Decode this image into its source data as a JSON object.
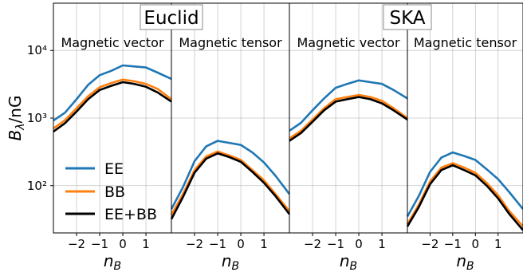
{
  "surveys": [
    {
      "name": "Euclid",
      "panels": [
        0,
        1
      ]
    },
    {
      "name": "SKA",
      "panels": [
        2,
        3
      ]
    }
  ],
  "legend": {
    "entries": [
      {
        "label": "EE",
        "color": "#1f77b4"
      },
      {
        "label": "BB",
        "color": "#ff7f0e"
      },
      {
        "label": "EE+BB",
        "color": "#000000"
      }
    ]
  },
  "chart_data": [
    {
      "type": "line",
      "title": "Magnetic vector",
      "xlabel": "n_B",
      "ylabel": "B_λ/nG",
      "yscale": "log",
      "ylim": [
        20,
        50000
      ],
      "xlim": [
        -3,
        2.1
      ],
      "xticks": [
        -2,
        -1,
        0,
        1
      ],
      "yticks": [
        100,
        1000,
        10000
      ],
      "grid": true,
      "legend_position": "lower-left",
      "series": [
        {
          "name": "EE",
          "color": "#1f77b4",
          "x": [
            -3,
            -2.5,
            -2,
            -1.5,
            -1,
            -0.5,
            0,
            0.5,
            1,
            1.5,
            2.1
          ],
          "y": [
            920,
            1200,
            1900,
            3100,
            4300,
            5000,
            6000,
            5800,
            5600,
            4700,
            3800
          ]
        },
        {
          "name": "BB",
          "color": "#ff7f0e",
          "x": [
            -3,
            -2.5,
            -2,
            -1.5,
            -1,
            -0.5,
            0,
            0.5,
            1,
            1.5,
            2.1
          ],
          "y": [
            700,
            930,
            1400,
            2100,
            2850,
            3300,
            3700,
            3500,
            3200,
            2700,
            1900
          ]
        },
        {
          "name": "EE+BB",
          "color": "#000000",
          "x": [
            -3,
            -2.5,
            -2,
            -1.5,
            -1,
            -0.5,
            0,
            0.5,
            1,
            1.5,
            2.1
          ],
          "y": [
            630,
            840,
            1250,
            1900,
            2600,
            3000,
            3400,
            3200,
            2900,
            2400,
            1750
          ]
        }
      ]
    },
    {
      "type": "line",
      "title": "Magnetic tensor",
      "xlabel": "n_B",
      "yscale": "log",
      "ylim": [
        20,
        50000
      ],
      "xlim": [
        -3,
        2.1
      ],
      "xticks": [
        -2,
        -1,
        0,
        1
      ],
      "grid": true,
      "series": [
        {
          "name": "EE",
          "color": "#1f77b4",
          "x": [
            -3,
            -2.5,
            -2,
            -1.5,
            -1,
            -0.5,
            0,
            0.5,
            1,
            1.5,
            2.1
          ],
          "y": [
            45,
            95,
            230,
            380,
            460,
            430,
            400,
            310,
            220,
            140,
            75
          ]
        },
        {
          "name": "BB",
          "color": "#ff7f0e",
          "x": [
            -3,
            -2.5,
            -2,
            -1.5,
            -1,
            -0.5,
            0,
            0.5,
            1,
            1.5,
            2.1
          ],
          "y": [
            37,
            75,
            170,
            270,
            320,
            280,
            240,
            170,
            120,
            75,
            42
          ]
        },
        {
          "name": "EE+BB",
          "color": "#000000",
          "x": [
            -3,
            -2.5,
            -2,
            -1.5,
            -1,
            -0.5,
            0,
            0.5,
            1,
            1.5,
            2.1
          ],
          "y": [
            32,
            68,
            155,
            250,
            300,
            265,
            225,
            160,
            110,
            70,
            38
          ]
        }
      ]
    },
    {
      "type": "line",
      "title": "Magnetic vector",
      "xlabel": "n_B",
      "yscale": "log",
      "ylim": [
        20,
        50000
      ],
      "xlim": [
        -3,
        2.1
      ],
      "xticks": [
        -2,
        -1,
        0,
        1
      ],
      "grid": true,
      "series": [
        {
          "name": "EE",
          "color": "#1f77b4",
          "x": [
            -3,
            -2.5,
            -2,
            -1.5,
            -1,
            -0.5,
            0,
            0.5,
            1,
            1.5,
            2.1
          ],
          "y": [
            650,
            850,
            1300,
            1950,
            2800,
            3200,
            3600,
            3400,
            3200,
            2600,
            1950
          ]
        },
        {
          "name": "BB",
          "color": "#ff7f0e",
          "x": [
            -3,
            -2.5,
            -2,
            -1.5,
            -1,
            -0.5,
            0,
            0.5,
            1,
            1.5,
            2.1
          ],
          "y": [
            500,
            650,
            950,
            1400,
            1900,
            2050,
            2200,
            2050,
            1800,
            1400,
            1000
          ]
        },
        {
          "name": "EE+BB",
          "color": "#000000",
          "x": [
            -3,
            -2.5,
            -2,
            -1.5,
            -1,
            -0.5,
            0,
            0.5,
            1,
            1.5,
            2.1
          ],
          "y": [
            460,
            600,
            880,
            1300,
            1750,
            1900,
            2050,
            1900,
            1650,
            1300,
            950
          ]
        }
      ]
    },
    {
      "type": "line",
      "title": "Magnetic tensor",
      "xlabel": "n_B",
      "yscale": "log",
      "ylim": [
        20,
        50000
      ],
      "xlim": [
        -3,
        2.1
      ],
      "xticks": [
        -2,
        -1,
        0,
        1
      ],
      "grid": true,
      "series": [
        {
          "name": "EE",
          "color": "#1f77b4",
          "x": [
            -3,
            -2.5,
            -2,
            -1.5,
            -1,
            -0.5,
            0,
            0.5,
            1,
            1.5,
            2.1
          ],
          "y": [
            35,
            70,
            160,
            260,
            310,
            275,
            240,
            175,
            125,
            80,
            45
          ]
        },
        {
          "name": "BB",
          "color": "#ff7f0e",
          "x": [
            -3,
            -2.5,
            -2,
            -1.5,
            -1,
            -0.5,
            0,
            0.5,
            1,
            1.5,
            2.1
          ],
          "y": [
            27,
            52,
            115,
            185,
            215,
            185,
            155,
            110,
            72,
            42,
            25
          ]
        },
        {
          "name": "EE+BB",
          "color": "#000000",
          "x": [
            -3,
            -2.5,
            -2,
            -1.5,
            -1,
            -0.5,
            0,
            0.5,
            1,
            1.5,
            2.1
          ],
          "y": [
            25,
            48,
            105,
            170,
            200,
            170,
            142,
            100,
            65,
            38,
            22
          ]
        }
      ]
    }
  ]
}
